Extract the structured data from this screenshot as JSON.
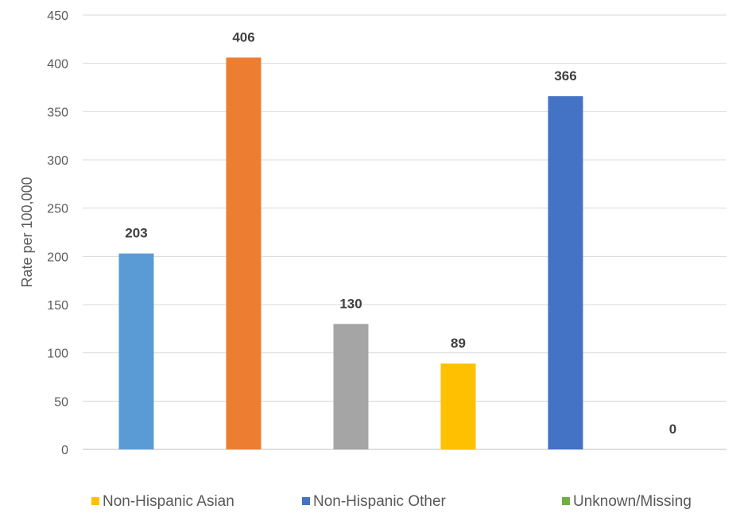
{
  "chart_data": {
    "type": "bar",
    "ylabel": "Rate per 100,000",
    "ylim": [
      0,
      450
    ],
    "ytick_step": 50,
    "grid": true,
    "legend_position": "bottom",
    "bars": [
      {
        "value": 203,
        "label": "203",
        "color": "#5B9BD5"
      },
      {
        "value": 406,
        "label": "406",
        "color": "#ED7D31"
      },
      {
        "value": 130,
        "label": "130",
        "color": "#A5A5A5"
      },
      {
        "value": 89,
        "label": "89",
        "color": "#FFC000"
      },
      {
        "value": 366,
        "label": "366",
        "color": "#4472C4"
      },
      {
        "value": 0,
        "label": "0",
        "color": "#70AD47"
      }
    ],
    "legend": [
      {
        "name": "Non-Hispanic Asian",
        "color": "#FFC000"
      },
      {
        "name": "Non-Hispanic Other",
        "color": "#4472C4"
      },
      {
        "name": "Unknown/Missing",
        "color": "#70AD47"
      }
    ]
  }
}
